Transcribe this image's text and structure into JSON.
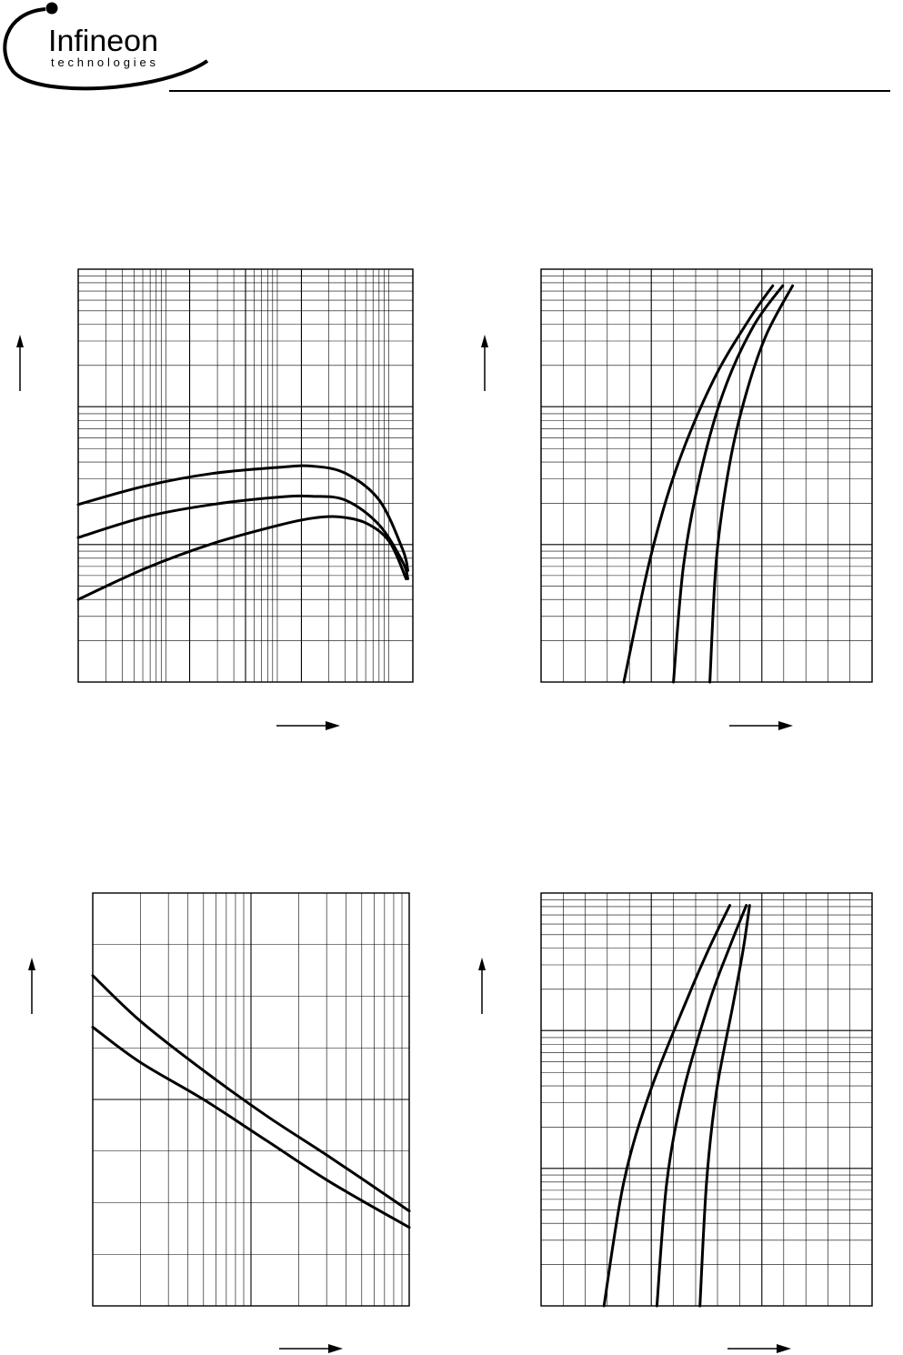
{
  "brand": {
    "name": "Infineon",
    "tagline": "technologies",
    "color": "#000000"
  },
  "chart_data": [
    {
      "type": "line",
      "x_scale": "log",
      "y_scale": "log",
      "grid": true,
      "series": [
        {
          "points": [
            [
              0,
              0.43
            ],
            [
              0.2,
              0.475
            ],
            [
              0.4,
              0.505
            ],
            [
              0.6,
              0.52
            ],
            [
              0.7,
              0.523
            ],
            [
              0.8,
              0.505
            ],
            [
              0.9,
              0.44
            ],
            [
              0.97,
              0.32
            ],
            [
              0.985,
              0.27
            ]
          ]
        },
        {
          "points": [
            [
              0,
              0.35
            ],
            [
              0.2,
              0.4
            ],
            [
              0.4,
              0.43
            ],
            [
              0.6,
              0.448
            ],
            [
              0.7,
              0.45
            ],
            [
              0.8,
              0.44
            ],
            [
              0.9,
              0.38
            ],
            [
              0.97,
              0.29
            ],
            [
              0.985,
              0.25
            ]
          ]
        },
        {
          "points": [
            [
              0,
              0.2
            ],
            [
              0.2,
              0.275
            ],
            [
              0.4,
              0.335
            ],
            [
              0.6,
              0.38
            ],
            [
              0.7,
              0.397
            ],
            [
              0.78,
              0.4
            ],
            [
              0.86,
              0.385
            ],
            [
              0.93,
              0.34
            ],
            [
              0.98,
              0.25
            ]
          ]
        }
      ]
    },
    {
      "type": "line",
      "x_scale": "linear",
      "y_scale": "log",
      "grid": true,
      "series": [
        {
          "points": [
            [
              0.25,
              0
            ],
            [
              0.33,
              0.3
            ],
            [
              0.41,
              0.52
            ],
            [
              0.52,
              0.73
            ],
            [
              0.63,
              0.88
            ],
            [
              0.7,
              0.96
            ]
          ]
        },
        {
          "points": [
            [
              0.4,
              0
            ],
            [
              0.43,
              0.28
            ],
            [
              0.48,
              0.5
            ],
            [
              0.55,
              0.7
            ],
            [
              0.64,
              0.86
            ],
            [
              0.73,
              0.96
            ]
          ]
        },
        {
          "points": [
            [
              0.51,
              0
            ],
            [
              0.53,
              0.3
            ],
            [
              0.57,
              0.53
            ],
            [
              0.62,
              0.7
            ],
            [
              0.68,
              0.84
            ],
            [
              0.76,
              0.96
            ]
          ]
        }
      ]
    },
    {
      "type": "line",
      "x_scale": "log",
      "y_scale": "linear",
      "grid": true,
      "series": [
        {
          "points": [
            [
              0,
              0.8
            ],
            [
              0.15,
              0.69
            ],
            [
              0.35,
              0.57
            ],
            [
              0.55,
              0.46
            ],
            [
              0.75,
              0.36
            ],
            [
              1,
              0.23
            ]
          ]
        },
        {
          "points": [
            [
              0,
              0.675
            ],
            [
              0.15,
              0.59
            ],
            [
              0.35,
              0.5
            ],
            [
              0.55,
              0.4
            ],
            [
              0.75,
              0.3
            ],
            [
              1,
              0.19
            ]
          ]
        }
      ]
    },
    {
      "type": "line",
      "x_scale": "linear",
      "y_scale": "log",
      "grid": true,
      "series": [
        {
          "points": [
            [
              0.19,
              0
            ],
            [
              0.25,
              0.3
            ],
            [
              0.33,
              0.52
            ],
            [
              0.45,
              0.76
            ],
            [
              0.51,
              0.87
            ],
            [
              0.57,
              0.97
            ]
          ]
        },
        {
          "points": [
            [
              0.35,
              0
            ],
            [
              0.38,
              0.3
            ],
            [
              0.43,
              0.52
            ],
            [
              0.51,
              0.74
            ],
            [
              0.57,
              0.87
            ],
            [
              0.62,
              0.97
            ]
          ]
        },
        {
          "points": [
            [
              0.48,
              0
            ],
            [
              0.5,
              0.3
            ],
            [
              0.53,
              0.52
            ],
            [
              0.58,
              0.73
            ],
            [
              0.61,
              0.86
            ],
            [
              0.63,
              0.97
            ]
          ]
        }
      ]
    }
  ]
}
